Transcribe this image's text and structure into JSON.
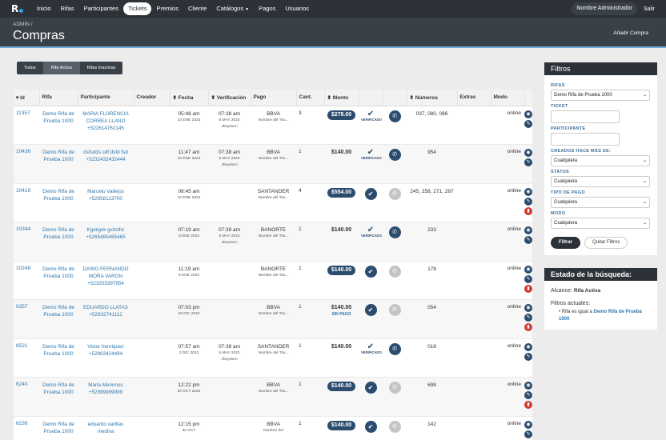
{
  "nav": {
    "logo": "R",
    "items": [
      "Inicio",
      "Rifas",
      "Participantes",
      "Tickets",
      "Premios",
      "Cliente",
      "Catálogos",
      "Pagos",
      "Usuarios"
    ],
    "active": "Tickets",
    "user": "Nombre Administrador",
    "logout": "Salir"
  },
  "header": {
    "crumb": "ADMIN  /",
    "title": "Compras",
    "add": "Añadir Compra"
  },
  "tabs": [
    "Todos",
    "Rifa Activa",
    "Rifas Inactivas"
  ],
  "table": {
    "columns": [
      "Id",
      "Rifa",
      "Participante",
      "Creador",
      "Fecha",
      "Verificación",
      "Pago",
      "Cant.",
      "Monto",
      "",
      "",
      "Números",
      "Extras",
      "Modo",
      ""
    ],
    "rows": [
      {
        "id": "11357",
        "rifa": "Demo Rifa de Prueba 1000",
        "part": "MARIA FLORENCIA CORREA LLANO +522614762145",
        "time": "05:48 am",
        "date": "23 ENE 2023",
        "vtime": "07:38 am",
        "vdate": "5 MAY 2023",
        "vuser": "Jheysson",
        "bank": "BBVA",
        "bankdesc": "Nombre del Titu...",
        "cant": "3",
        "monto": "$278.00",
        "pill": true,
        "sinpago": "",
        "ver": "tick",
        "verlabel": "VERIFICADO",
        "wa": "dark",
        "nums": "037, 080, 086",
        "modo": "online",
        "del": false
      },
      {
        "id": "10436",
        "rifa": "Demo Rifa de Prueba 1000",
        "part": "dsfsdds sdf dsfd fsd +5232432432444",
        "time": "11:47 am",
        "date": "10 ENE 2023",
        "vtime": "07:38 am",
        "vdate": "5 MAY 2023",
        "vuser": "Jheysson",
        "bank": "BBVA",
        "bankdesc": "Nombre del Titu...",
        "cant": "1",
        "monto": "$140.00",
        "pill": false,
        "sinpago": "",
        "ver": "tick",
        "verlabel": "VERIFICADO",
        "wa": "dark",
        "nums": "954",
        "modo": "online",
        "del": false
      },
      {
        "id": "10419",
        "rifa": "Demo Rifa de Prueba 1000",
        "part": "Marcelo Vallejos +52958113700",
        "time": "08:45 am",
        "date": "10 ENE 2023",
        "vtime": "",
        "vdate": "",
        "vuser": "",
        "bank": "SANTANDER",
        "bankdesc": "Nombre del Titu...",
        "cant": "4",
        "monto": "$554.00",
        "pill": true,
        "sinpago": "",
        "ver": "circle",
        "verlabel": "",
        "wa": "grey",
        "nums": "245, 258, 271, 287",
        "modo": "online",
        "del": true
      },
      {
        "id": "10344",
        "rifa": "Demo Rifa de Prueba 1000",
        "part": "Kgxkgxk gxhclhc +5265465465465",
        "time": "07:19 am",
        "date": "8 ENE 2023",
        "vtime": "07:38 am",
        "vdate": "5 MAY 2023",
        "vuser": "Jheysson",
        "bank": "BANORTE",
        "bankdesc": "Nombre del Titu...",
        "cant": "1",
        "monto": "$140.00",
        "pill": false,
        "sinpago": "",
        "ver": "tick",
        "verlabel": "VERIFICADO",
        "wa": "dark",
        "nums": "233",
        "modo": "online",
        "del": false
      },
      {
        "id": "10248",
        "rifa": "Demo Rifa de Prueba 1000",
        "part": "DARIO FERNANDO MORA VARON +523203397954",
        "time": "11:19 am",
        "date": "5 ENE 2023",
        "vtime": "",
        "vdate": "",
        "vuser": "",
        "bank": "BANORTE",
        "bankdesc": "Nombre del Titu...",
        "cant": "1",
        "monto": "$140.00",
        "pill": true,
        "sinpago": "",
        "ver": "circle",
        "verlabel": "",
        "wa": "grey",
        "nums": "178",
        "modo": "online",
        "del": true
      },
      {
        "id": "9357",
        "rifa": "Demo Rifa de Prueba 1000",
        "part": "EDUARDO LLATAS +52932741112",
        "time": "07:03 pm",
        "date": "25 DIC 2022",
        "vtime": "",
        "vdate": "",
        "vuser": "",
        "bank": "BBVA",
        "bankdesc": "Nombre del Titu...",
        "cant": "1",
        "monto": "$140.00",
        "pill": false,
        "sinpago": "SIN PAGO",
        "ver": "circle",
        "verlabel": "",
        "wa": "grey",
        "nums": "054",
        "modo": "online",
        "del": true
      },
      {
        "id": "8521",
        "rifa": "Demo Rifa de Prueba 1000",
        "part": "Victor henriquez +52963424494",
        "time": "07:57 am",
        "date": "2 DIC 2022",
        "vtime": "07:38 am",
        "vdate": "5 MAY 2023",
        "vuser": "Jheysson",
        "bank": "SANTANDER",
        "bankdesc": "Nombre del Titu...",
        "cant": "1",
        "monto": "$140.00",
        "pill": false,
        "sinpago": "",
        "ver": "tick",
        "verlabel": "VERIFICADO",
        "wa": "dark",
        "nums": "018",
        "modo": "online",
        "del": false
      },
      {
        "id": "6240",
        "rifa": "Demo Rifa de Prueba 1000",
        "part": "Maria Menunos +52999999999",
        "time": "12:22 pm",
        "date": "30 OCT 2022",
        "vtime": "",
        "vdate": "",
        "vuser": "",
        "bank": "BBVA",
        "bankdesc": "Nombre del Titu...",
        "cant": "1",
        "monto": "$140.00",
        "pill": true,
        "sinpago": "",
        "ver": "circle",
        "verlabel": "",
        "wa": "grey",
        "nums": "698",
        "modo": "online",
        "del": true
      },
      {
        "id": "6239",
        "rifa": "Demo Rifa de Prueba 1000",
        "part": "eduardo varillas medina",
        "time": "12:15 pm",
        "date": "30 OCT",
        "vtime": "",
        "vdate": "",
        "vuser": "",
        "bank": "BBVA",
        "bankdesc": "Nombre del",
        "cant": "1",
        "monto": "$140.00",
        "pill": true,
        "sinpago": "",
        "ver": "circle",
        "verlabel": "",
        "wa": "grey",
        "nums": "142",
        "modo": "online",
        "del": true
      }
    ]
  },
  "filters": {
    "title": "Filtros",
    "rifas_label": "RIFAS",
    "rifas_value": "Demo Rifa de Prueba 1000",
    "ticket_label": "TICKET",
    "participante_label": "PARTICIPANTE",
    "creados_label": "CREADOS HACE MÁS DE:",
    "creados_value": "Cualquiera",
    "status_label": "STATUS",
    "status_value": "Cualquiera",
    "tipo_label": "TIPO DE PAGO",
    "tipo_value": "Cualquiera",
    "modo_label": "MODO",
    "modo_value": "Cualquiera",
    "filtrar": "Filtrar",
    "quitar": "Quitar Filtros"
  },
  "estado": {
    "title": "Estado de la búsqueda:",
    "alcance_label": "Alcance:",
    "alcance_value": "Rifa Activa",
    "actuales_label": "Filtros actuales:",
    "filter_prefix": "Rifa es igual a",
    "filter_value": "Demo Rifa de Prueba 1000"
  }
}
